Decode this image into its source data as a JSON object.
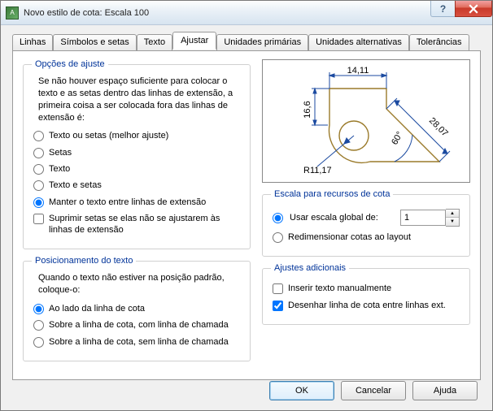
{
  "window": {
    "title": "Novo estilo de cota: Escala 100"
  },
  "tabs": {
    "items": [
      {
        "label": "Linhas"
      },
      {
        "label": "Símbolos e setas"
      },
      {
        "label": "Texto"
      },
      {
        "label": "Ajustar"
      },
      {
        "label": "Unidades primárias"
      },
      {
        "label": "Unidades alternativas"
      },
      {
        "label": "Tolerâncias"
      }
    ],
    "active_index": 3
  },
  "fit_options": {
    "legend": "Opções de ajuste",
    "description": "Se não houver espaço suficiente para colocar o texto e as setas dentro das linhas de extensão, a primeira coisa a ser colocada fora das linhas de extensão é:",
    "radios": [
      "Texto ou setas (melhor ajuste)",
      "Setas",
      "Texto",
      "Texto e setas",
      "Manter o texto entre linhas de extensão"
    ],
    "selected": 4,
    "suppress_check": "Suprimir setas se elas não se ajustarem às linhas de extensão",
    "suppress_checked": false
  },
  "text_placement": {
    "legend": "Posicionamento do texto",
    "description": "Quando o texto não estiver na posição padrão, coloque-o:",
    "radios": [
      "Ao lado da linha de cota",
      "Sobre a linha de cota, com linha de chamada",
      "Sobre a linha de cota, sem linha de chamada"
    ],
    "selected": 0
  },
  "preview": {
    "dims": {
      "top": "14,11",
      "left": "16,6",
      "diag": "28,07",
      "angle": "60°",
      "radius": "R11,17"
    },
    "line_color": "#9a7a2a",
    "dim_color": "#1b4aa0"
  },
  "scale": {
    "legend": "Escala para recursos de cota",
    "radios": [
      "Usar escala global de:",
      "Redimensionar cotas ao layout"
    ],
    "selected": 0,
    "value": "1"
  },
  "finetune": {
    "legend": "Ajustes adicionais",
    "checks": [
      {
        "label": "Inserir texto manualmente",
        "checked": false
      },
      {
        "label": "Desenhar linha de cota entre linhas ext.",
        "checked": true
      }
    ]
  },
  "buttons": {
    "ok": "OK",
    "cancel": "Cancelar",
    "help": "Ajuda"
  }
}
